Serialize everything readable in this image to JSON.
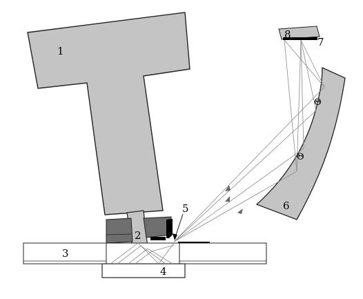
{
  "labels": {
    "l1": "1",
    "l2": "2",
    "l3": "3",
    "l4": "4",
    "l5": "5",
    "l6": "6",
    "l7": "7",
    "l8": "8",
    "theta_upper": "Θ",
    "theta_lower": "Θ"
  },
  "colors": {
    "part_fill": "#c4c4c4",
    "dark_fill": "#6e6e6e",
    "outline": "#222222",
    "ray": "#8a8a8a",
    "black": "#000000"
  }
}
